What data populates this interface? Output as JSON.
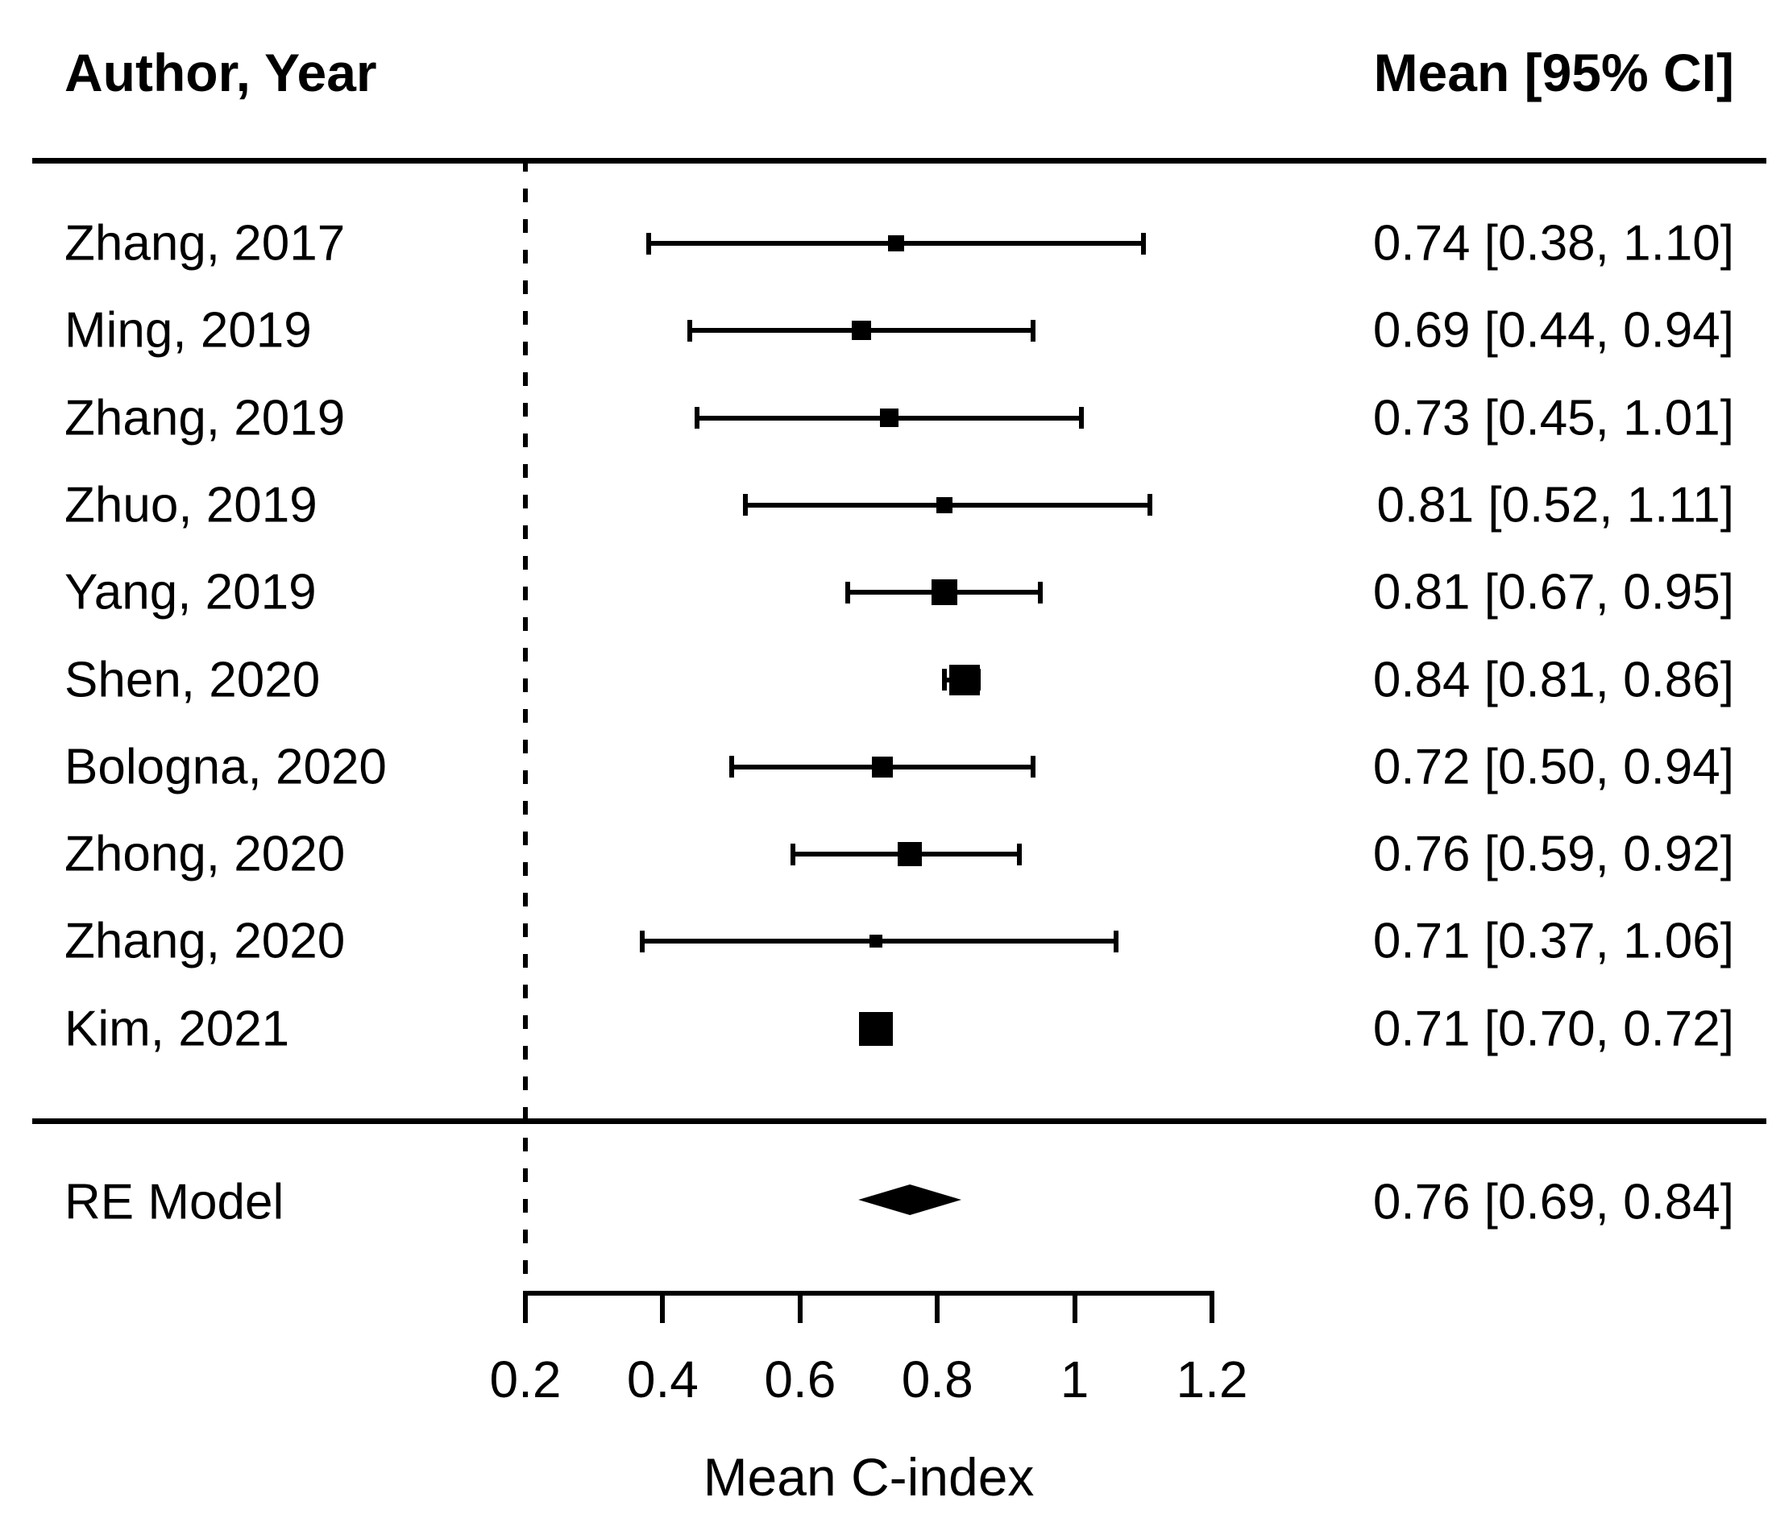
{
  "colors": {
    "foreground": "#000000",
    "background": "#ffffff"
  },
  "headers": {
    "left": "Author, Year",
    "right": "Mean [95% CI]"
  },
  "chart_data": {
    "type": "forest",
    "xlabel": "Mean C-index",
    "xlim": [
      0.2,
      1.2
    ],
    "x_tick_values": [
      0.2,
      0.4,
      0.6,
      0.8,
      1,
      1.2
    ],
    "x_tick_labels": [
      "0.2",
      "0.4",
      "0.6",
      "0.8",
      "1",
      "1.2"
    ],
    "reference_line_x": 0.2,
    "grid": false,
    "studies": [
      {
        "label": "Zhang, 2017",
        "mean": 0.74,
        "ci_low": 0.38,
        "ci_high": 1.1,
        "display": "0.74 [0.38, 1.10]",
        "marker_px": 20
      },
      {
        "label": "Ming, 2019",
        "mean": 0.69,
        "ci_low": 0.44,
        "ci_high": 0.94,
        "display": "0.69 [0.44, 0.94]",
        "marker_px": 24
      },
      {
        "label": "Zhang, 2019",
        "mean": 0.73,
        "ci_low": 0.45,
        "ci_high": 1.01,
        "display": "0.73 [0.45, 1.01]",
        "marker_px": 23
      },
      {
        "label": "Zhuo, 2019",
        "mean": 0.81,
        "ci_low": 0.52,
        "ci_high": 1.11,
        "display": "0.81 [0.52, 1.11]",
        "marker_px": 20
      },
      {
        "label": "Yang, 2019",
        "mean": 0.81,
        "ci_low": 0.67,
        "ci_high": 0.95,
        "display": "0.81 [0.67, 0.95]",
        "marker_px": 32
      },
      {
        "label": "Shen, 2020",
        "mean": 0.84,
        "ci_low": 0.81,
        "ci_high": 0.86,
        "display": "0.84 [0.81, 0.86]",
        "marker_px": 38
      },
      {
        "label": "Bologna, 2020",
        "mean": 0.72,
        "ci_low": 0.5,
        "ci_high": 0.94,
        "display": "0.72 [0.50, 0.94]",
        "marker_px": 26
      },
      {
        "label": "Zhong, 2020",
        "mean": 0.76,
        "ci_low": 0.59,
        "ci_high": 0.92,
        "display": "0.76 [0.59, 0.92]",
        "marker_px": 30
      },
      {
        "label": "Zhang, 2020",
        "mean": 0.71,
        "ci_low": 0.37,
        "ci_high": 1.06,
        "display": "0.71 [0.37, 1.06]",
        "marker_px": 16
      },
      {
        "label": "Kim, 2021",
        "mean": 0.71,
        "ci_low": 0.7,
        "ci_high": 0.72,
        "display": "0.71 [0.70, 0.72]",
        "marker_px": 42
      }
    ],
    "summary": {
      "label": "RE Model",
      "mean": 0.76,
      "ci_low": 0.69,
      "ci_high": 0.84,
      "display": "0.76 [0.69, 0.84]"
    }
  }
}
